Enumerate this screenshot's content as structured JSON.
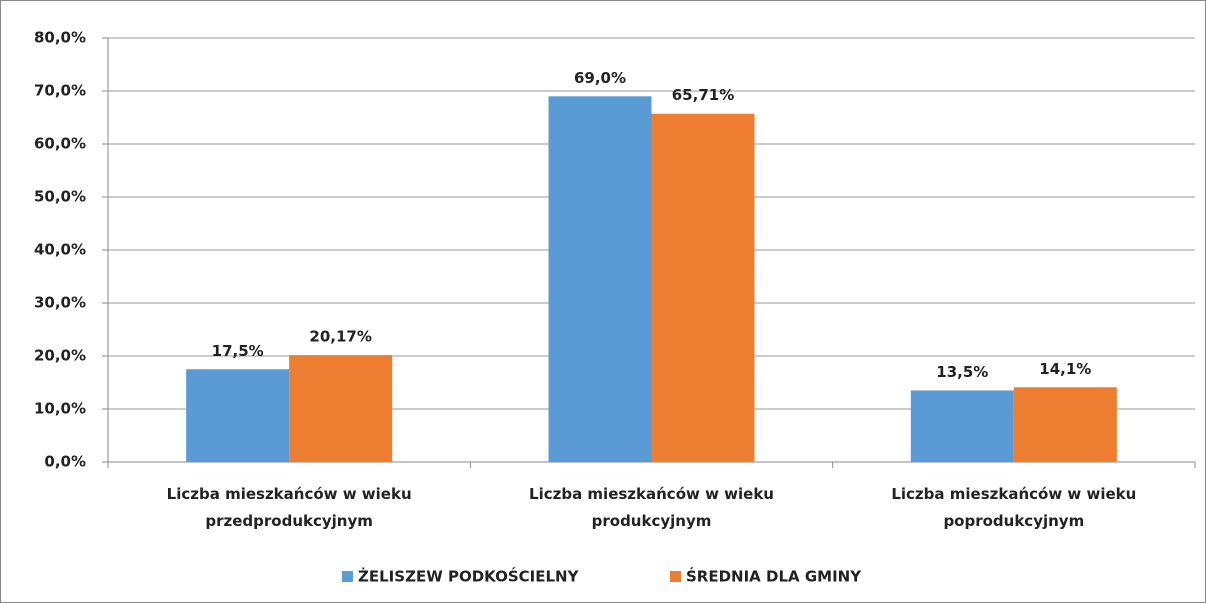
{
  "chart_data": {
    "type": "bar",
    "categories": [
      "Liczba mieszkańców w wieku przedprodukcyjnym",
      "Liczba mieszkańców w wieku produkcyjnym",
      "Liczba mieszkańców w wieku poprodukcyjnym"
    ],
    "series": [
      {
        "name": "ŻELISZEW PODKOŚCIELNY",
        "color": "#5b9bd5",
        "values": [
          17.5,
          69.0,
          13.5
        ],
        "value_labels": [
          "17,5%",
          "69,0%",
          "13,5%"
        ]
      },
      {
        "name": "ŚREDNIA DLA GMINY",
        "color": "#ed7d31",
        "values": [
          20.17,
          65.71,
          14.1
        ],
        "value_labels": [
          "20,17%",
          "65,71%",
          "14,1%"
        ]
      }
    ],
    "ylim": [
      0,
      80
    ],
    "yticks": [
      {
        "value": 0,
        "label": "0,0%"
      },
      {
        "value": 10,
        "label": "10,0%"
      },
      {
        "value": 20,
        "label": "20,0%"
      },
      {
        "value": 30,
        "label": "30,0%"
      },
      {
        "value": 40,
        "label": "40,0%"
      },
      {
        "value": 50,
        "label": "50,0%"
      },
      {
        "value": 60,
        "label": "60,0%"
      },
      {
        "value": 70,
        "label": "70,0%"
      },
      {
        "value": 80,
        "label": "80,0%"
      }
    ],
    "grid": true,
    "legend": "bottom"
  }
}
